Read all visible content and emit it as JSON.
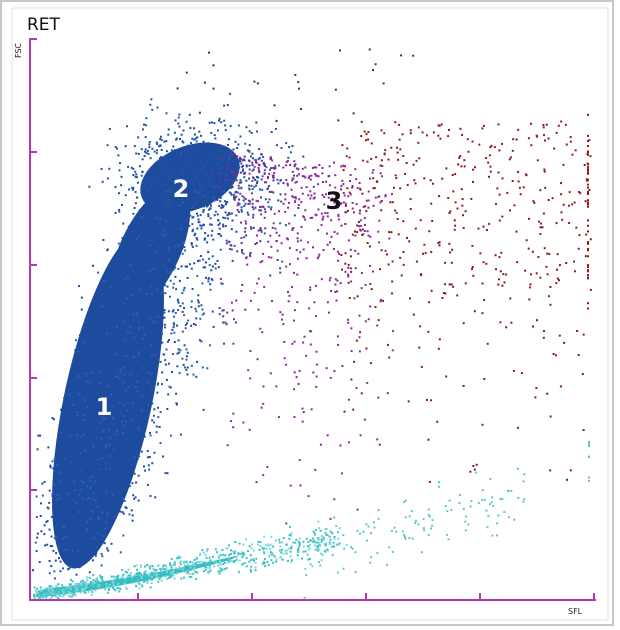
{
  "panel": {
    "title": "RET",
    "y_axis_label": "FSC",
    "x_axis_label": "SFL",
    "clusters": [
      {
        "label": "1"
      },
      {
        "label": "2"
      },
      {
        "label": "3"
      }
    ]
  }
}
